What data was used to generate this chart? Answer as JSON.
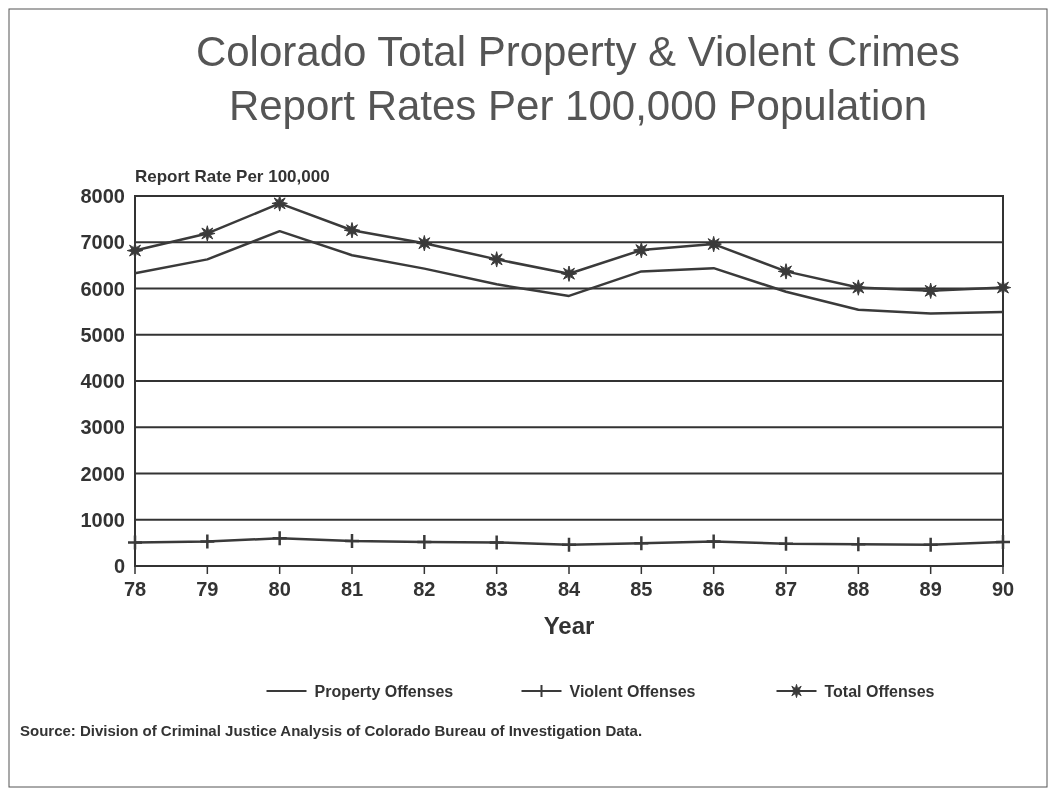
{
  "chart_data": {
    "type": "line",
    "title": "Colorado Total Property & Violent Crimes",
    "subtitle": "Report Rates Per 100,000 Population",
    "ylabel": "Report Rate Per 100,000",
    "xlabel": "Year",
    "categories": [
      "78",
      "79",
      "80",
      "81",
      "82",
      "83",
      "84",
      "85",
      "86",
      "87",
      "88",
      "89",
      "90"
    ],
    "series": [
      {
        "name": "Property Offenses",
        "color": "#3a3a3a",
        "marker": "none",
        "values": [
          6330,
          6630,
          7240,
          6720,
          6430,
          6090,
          5840,
          6370,
          6440,
          5930,
          5540,
          5460,
          5490
        ]
      },
      {
        "name": "Violent Offenses",
        "color": "#3a3a3a",
        "marker": "cross",
        "values": [
          510,
          530,
          600,
          540,
          520,
          510,
          460,
          490,
          530,
          480,
          470,
          460,
          520
        ]
      },
      {
        "name": "Total Offenses",
        "color": "#3a3a3a",
        "marker": "star",
        "values": [
          6820,
          7190,
          7840,
          7260,
          6980,
          6630,
          6320,
          6830,
          6960,
          6370,
          6020,
          5950,
          6020
        ]
      }
    ],
    "ylim": [
      0,
      8000
    ],
    "yticks": [
      0,
      1000,
      2000,
      3000,
      4000,
      5000,
      6000,
      7000,
      8000
    ],
    "grid": "y",
    "legend": "bottom",
    "annotations": [
      "Source: Division of Criminal Justice Analysis of Colorado Bureau of Investigation Data."
    ]
  }
}
